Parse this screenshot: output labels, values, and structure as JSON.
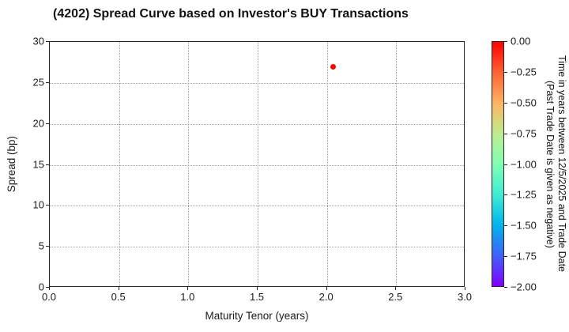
{
  "chart_data": {
    "type": "scatter",
    "title": "(4202)   Spread Curve based on Investor's BUY Transactions",
    "xlabel": "Maturity Tenor (years)",
    "ylabel": "Spread (bp)",
    "xlim": [
      0.0,
      3.0
    ],
    "ylim": [
      0,
      30
    ],
    "grid": true,
    "grid_style": "dotted",
    "x_ticks": [
      "0.0",
      "0.5",
      "1.0",
      "1.5",
      "2.0",
      "2.5",
      "3.0"
    ],
    "y_ticks": [
      "0",
      "5",
      "10",
      "15",
      "20",
      "25",
      "30"
    ],
    "points": [
      {
        "x": 2.05,
        "y": 26.9,
        "time_years": 0.0,
        "color": "#ff0000"
      }
    ],
    "colorbar": {
      "colormap": "rainbow",
      "vmax_label": "0.00",
      "vmin_label": "-2.00",
      "ticks": [
        "0.00",
        "−0.25",
        "−0.50",
        "−0.75",
        "−1.00",
        "−1.25",
        "−1.50",
        "−1.75",
        "−2.00"
      ],
      "gradient_top_to_bottom": [
        "#ff0000",
        "#ff6232",
        "#ffb462",
        "#bfec8e",
        "#80ffb4",
        "#40ecd4",
        "#00b4ec",
        "#4062fa",
        "#8000ff"
      ],
      "label_line1": "Time in years between 12/5/2025 and Trade Date",
      "label_line2": "(Past Trade Date is given as negative)"
    },
    "colors": {
      "spine": "#262626",
      "gridline": "#a3a3a3",
      "text": "#1a1a1a",
      "background": "#ffffff"
    }
  }
}
